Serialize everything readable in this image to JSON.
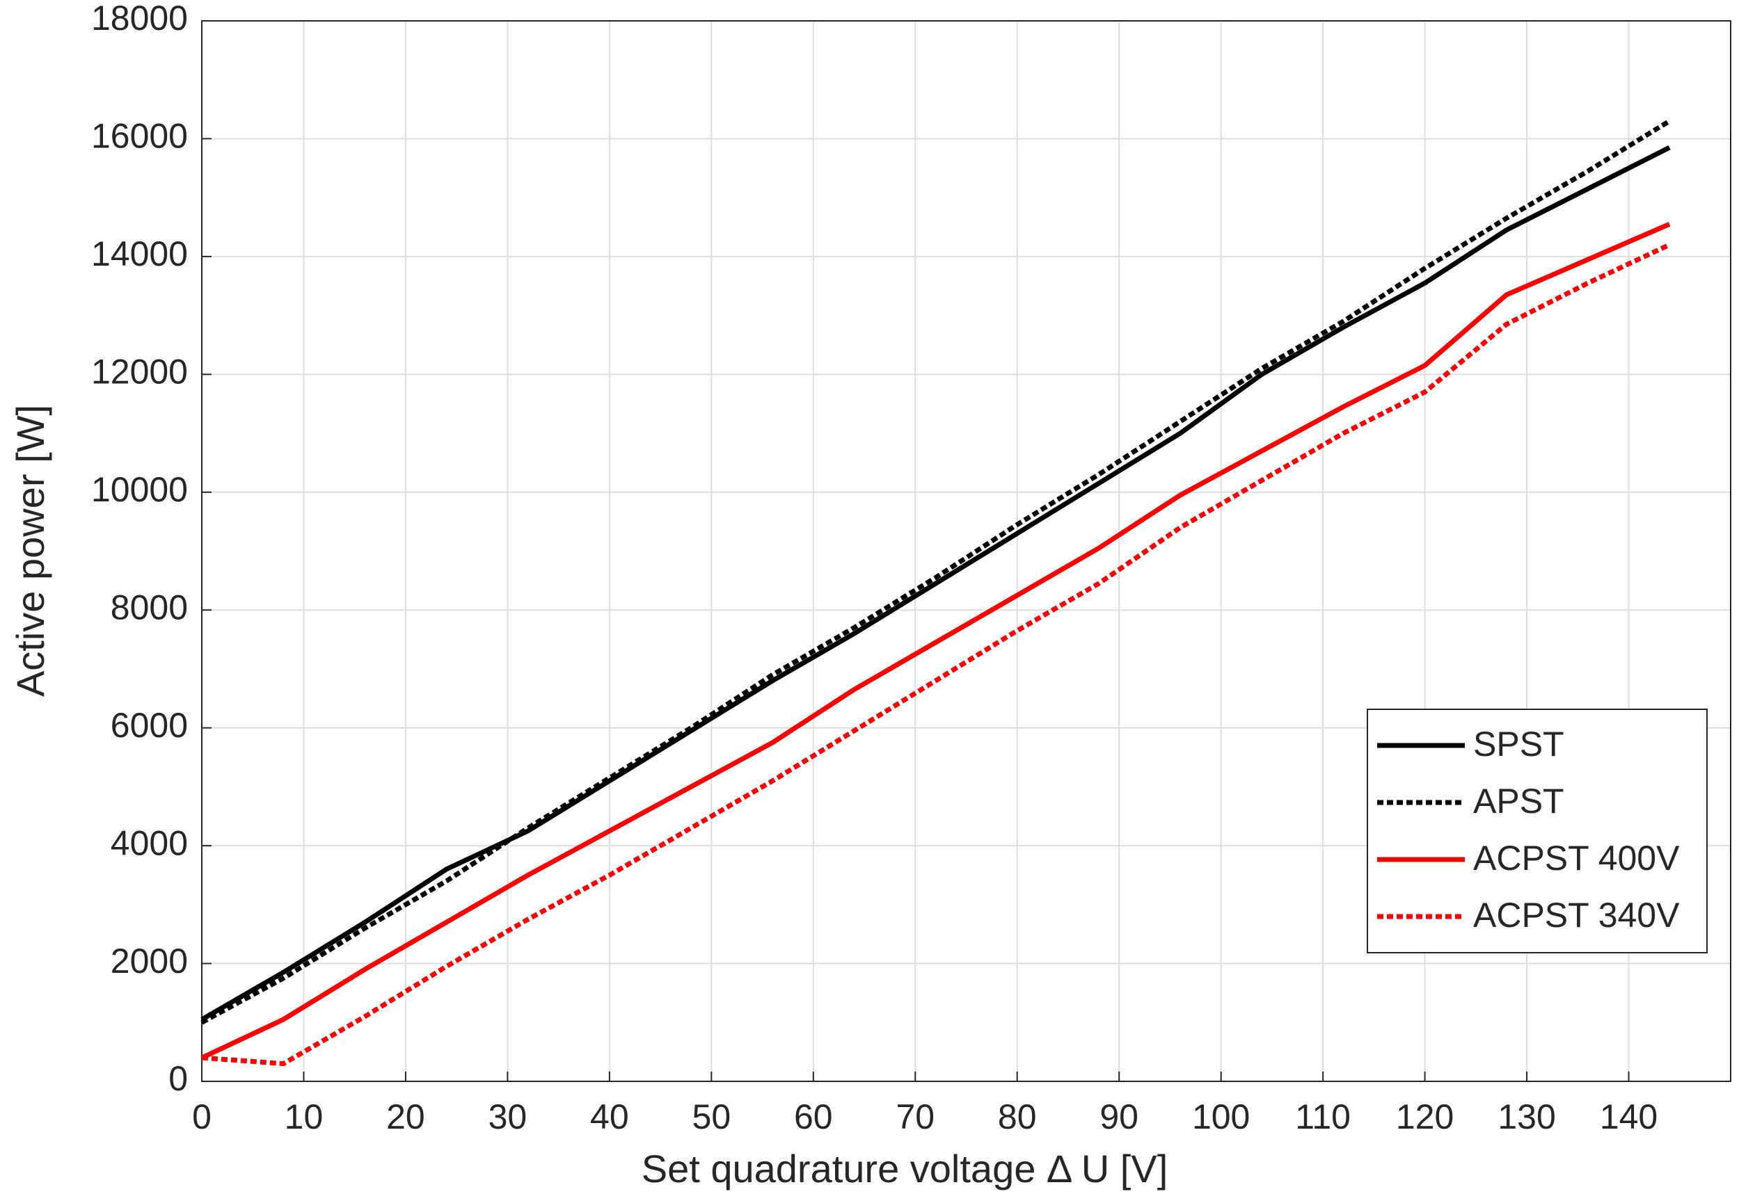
{
  "chart_data": {
    "type": "line",
    "xlabel": "Set quadrature voltage Δ U [V]",
    "ylabel": "Active power [W]",
    "x": [
      0,
      8,
      16,
      24,
      32,
      40,
      48,
      56,
      64,
      72,
      80,
      88,
      96,
      104,
      112,
      120,
      128,
      136,
      144
    ],
    "series": [
      {
        "name": "SPST",
        "color": "#000000",
        "dashed": false,
        "values": [
          1050,
          1850,
          2700,
          3600,
          4250,
          5100,
          5950,
          6800,
          7600,
          8450,
          9300,
          10150,
          11000,
          12000,
          12800,
          13550,
          14450,
          15150,
          15850
        ]
      },
      {
        "name": "APST",
        "color": "#000000",
        "dashed": true,
        "values": [
          1000,
          1750,
          2600,
          3400,
          4300,
          5150,
          6000,
          6900,
          7700,
          8550,
          9450,
          10300,
          11200,
          12100,
          12900,
          13800,
          14650,
          15450,
          16300
        ]
      },
      {
        "name": "ACPST 400V",
        "color": "#ff0000",
        "dashed": false,
        "values": [
          400,
          1050,
          1900,
          2700,
          3500,
          4250,
          5000,
          5750,
          6650,
          7450,
          8250,
          9050,
          9950,
          10700,
          11450,
          12150,
          13350,
          13950,
          14550
        ]
      },
      {
        "name": "ACPST 340V",
        "color": "#ff0000",
        "dashed": true,
        "values": [
          400,
          300,
          1100,
          1950,
          2750,
          3500,
          4300,
          5100,
          5950,
          6800,
          7650,
          8450,
          9400,
          10200,
          11000,
          11700,
          12850,
          13550,
          14200
        ]
      }
    ],
    "xlim": [
      0,
      150
    ],
    "xticks": [
      0,
      10,
      20,
      30,
      40,
      50,
      60,
      70,
      80,
      90,
      100,
      110,
      120,
      130,
      140
    ],
    "ylim": [
      0,
      18000
    ],
    "yticks": [
      0,
      2000,
      4000,
      6000,
      8000,
      10000,
      12000,
      14000,
      16000,
      18000
    ],
    "grid": true,
    "legend": "lower right"
  }
}
